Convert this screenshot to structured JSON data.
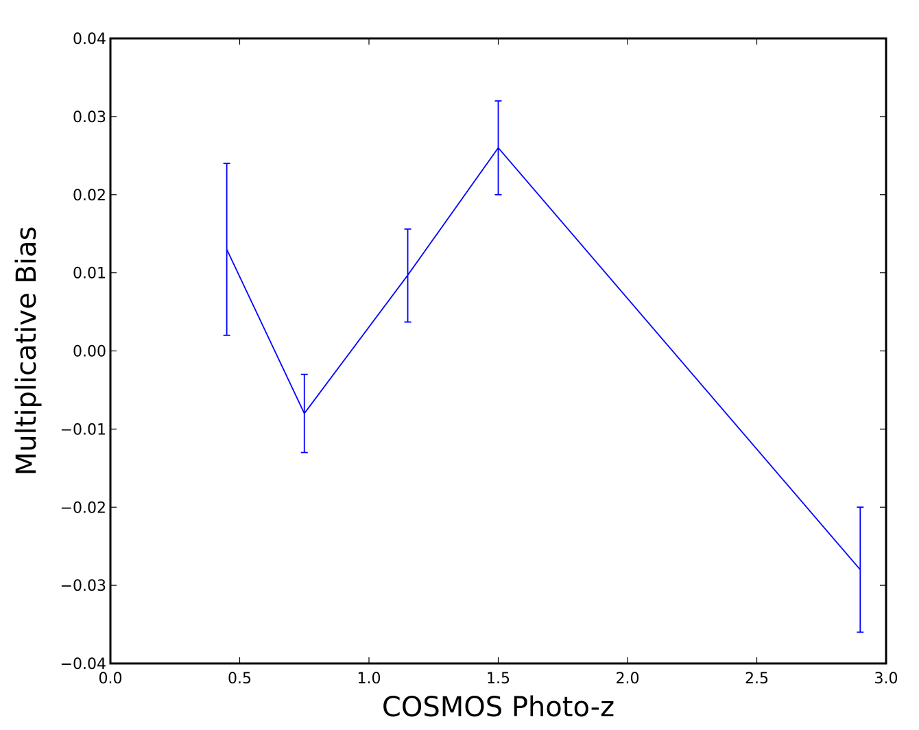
{
  "chart_data": {
    "type": "line",
    "title": "",
    "xlabel": "COSMOS Photo-z",
    "ylabel": "Multiplicative Bias",
    "xlim": [
      0.0,
      3.0
    ],
    "ylim": [
      -0.04,
      0.04
    ],
    "grid": false,
    "x_ticks": [
      0.0,
      0.5,
      1.0,
      1.5,
      2.0,
      2.5,
      3.0
    ],
    "x_tick_labels": [
      "0.0",
      "0.5",
      "1.0",
      "1.5",
      "2.0",
      "2.5",
      "3.0"
    ],
    "y_ticks": [
      -0.04,
      -0.03,
      -0.02,
      -0.01,
      0.0,
      0.01,
      0.02,
      0.03,
      0.04
    ],
    "y_tick_labels": [
      "−0.04",
      "−0.03",
      "−0.02",
      "−0.01",
      "0.00",
      "0.01",
      "0.02",
      "0.03",
      "0.04"
    ],
    "series": [
      {
        "color": "#0000ff",
        "x": [
          0.45,
          0.75,
          1.15,
          1.5,
          2.9
        ],
        "y": [
          0.013,
          -0.008,
          0.0097,
          0.026,
          -0.028
        ],
        "yerr_low": [
          0.002,
          -0.013,
          0.0037,
          0.02,
          -0.036
        ],
        "yerr_high": [
          0.024,
          -0.003,
          0.0156,
          0.032,
          -0.02
        ]
      }
    ]
  }
}
